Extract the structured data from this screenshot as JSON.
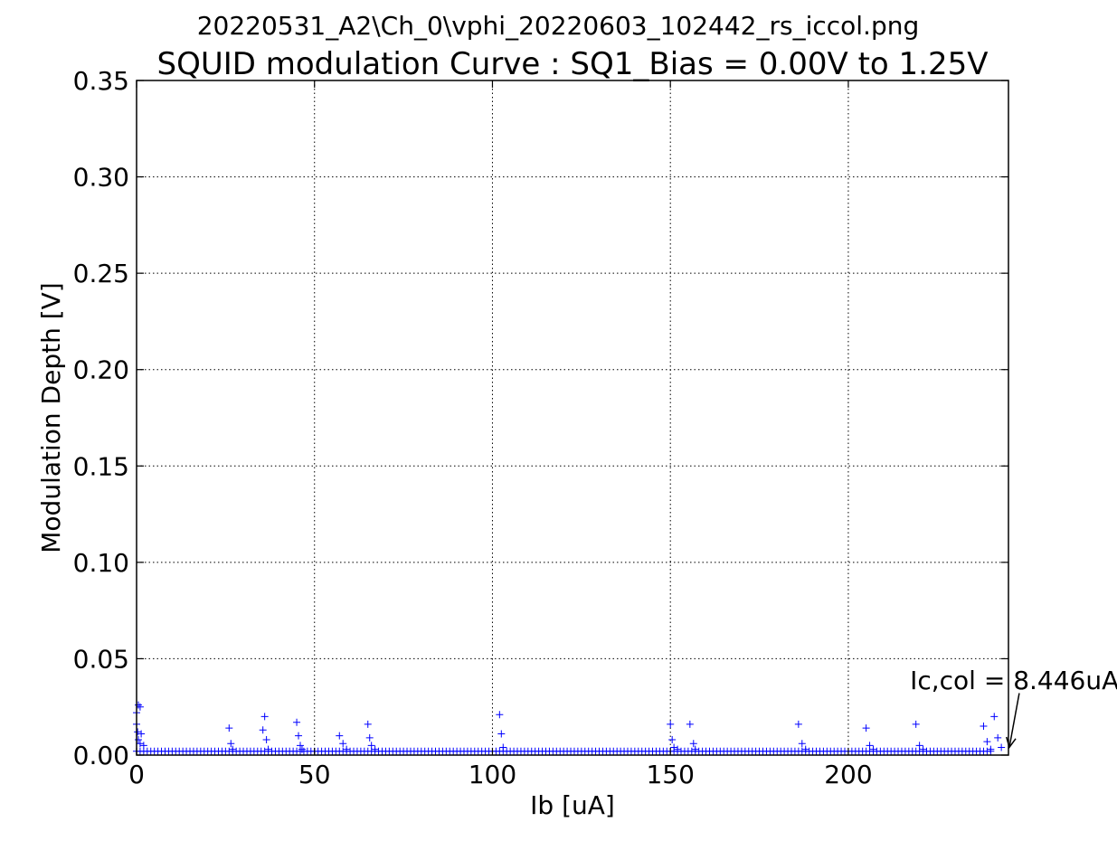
{
  "chart_data": {
    "type": "scatter",
    "suptitle": "20220531_A2\\Ch_0\\vphi_20220603_102442_rs_iccol.png",
    "title": "SQUID modulation Curve : SQ1_Bias = 0.00V to 1.25V",
    "xlabel": "Ib [uA]",
    "ylabel": "Modulation Depth [V]",
    "xlim": [
      0,
      245
    ],
    "ylim": [
      0,
      0.35
    ],
    "xticks": [
      0,
      50,
      100,
      150,
      200
    ],
    "yticks": [
      0.0,
      0.05,
      0.1,
      0.15,
      0.2,
      0.25,
      0.3,
      0.35
    ],
    "xtick_labels": [
      "0",
      "50",
      "100",
      "150",
      "200"
    ],
    "ytick_labels": [
      "0.00",
      "0.05",
      "0.10",
      "0.15",
      "0.20",
      "0.25",
      "0.30",
      "0.35"
    ],
    "grid": true,
    "marker": "+",
    "series_color": "#0000ff",
    "baseline": {
      "y": 0.002,
      "x_start": 0,
      "x_end": 240,
      "step": 1
    },
    "peaks": [
      [
        0,
        0.022
      ],
      [
        0,
        0.016
      ],
      [
        0.3,
        0.012
      ],
      [
        0.5,
        0.008
      ],
      [
        0.5,
        0.026
      ],
      [
        1,
        0.025
      ],
      [
        1,
        0.006
      ],
      [
        1.3,
        0.011
      ],
      [
        2,
        0.005
      ],
      [
        26,
        0.014
      ],
      [
        26.5,
        0.006
      ],
      [
        27,
        0.003
      ],
      [
        35.5,
        0.013
      ],
      [
        36,
        0.02
      ],
      [
        36.5,
        0.008
      ],
      [
        37,
        0.003
      ],
      [
        45,
        0.017
      ],
      [
        45.5,
        0.01
      ],
      [
        46,
        0.005
      ],
      [
        46.5,
        0.003
      ],
      [
        57,
        0.01
      ],
      [
        58,
        0.006
      ],
      [
        59,
        0.003
      ],
      [
        65,
        0.016
      ],
      [
        65.5,
        0.009
      ],
      [
        66,
        0.005
      ],
      [
        67,
        0.003
      ],
      [
        102,
        0.021
      ],
      [
        102.5,
        0.011
      ],
      [
        103,
        0.004
      ],
      [
        150,
        0.016
      ],
      [
        150.5,
        0.008
      ],
      [
        151,
        0.004
      ],
      [
        152,
        0.003
      ],
      [
        155.5,
        0.016
      ],
      [
        156.5,
        0.006
      ],
      [
        157,
        0.003
      ],
      [
        186,
        0.016
      ],
      [
        187,
        0.006
      ],
      [
        188,
        0.003
      ],
      [
        205,
        0.014
      ],
      [
        206,
        0.005
      ],
      [
        207,
        0.003
      ],
      [
        219,
        0.016
      ],
      [
        220,
        0.005
      ],
      [
        221,
        0.003
      ],
      [
        238,
        0.015
      ],
      [
        239,
        0.007
      ],
      [
        240,
        0.003
      ],
      [
        241,
        0.02
      ],
      [
        242,
        0.009
      ],
      [
        243,
        0.004
      ]
    ],
    "annotation": {
      "text": "Ic,col = 8.446uA",
      "point": [
        246,
        0.004
      ],
      "text_pos": [
        213,
        0.039
      ]
    }
  }
}
